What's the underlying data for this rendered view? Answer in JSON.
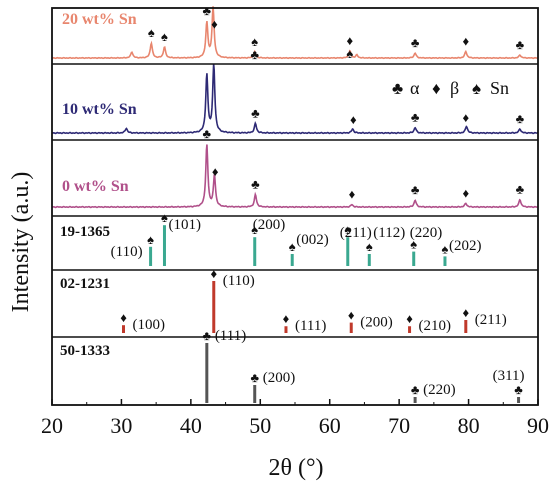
{
  "chart_data": {
    "type": "line",
    "xlabel": "2θ (°)",
    "ylabel": "Intensity (a.u.)",
    "xlim": [
      20,
      90
    ],
    "x_ticks": [
      20,
      30,
      40,
      50,
      60,
      70,
      80,
      90
    ],
    "legend": {
      "entries": [
        {
          "symbol": "♣",
          "label": "α"
        },
        {
          "symbol": "♦",
          "label": "β"
        },
        {
          "symbol": "♠",
          "label": "Sn"
        }
      ],
      "placement": "top-right of middle panel"
    },
    "series": [
      {
        "name": "20 wt% Sn",
        "color": "#e8866e",
        "peaks": [
          {
            "x": 31.5,
            "h": 0.12
          },
          {
            "x": 34.3,
            "h": 0.3
          },
          {
            "x": 36.2,
            "h": 0.22
          },
          {
            "x": 42.3,
            "h": 0.7
          },
          {
            "x": 43.2,
            "h": 1.0
          },
          {
            "x": 49.2,
            "h": 0.12
          },
          {
            "x": 62.9,
            "h": 0.14
          },
          {
            "x": 63.9,
            "h": 0.06
          },
          {
            "x": 72.3,
            "h": 0.1
          },
          {
            "x": 79.6,
            "h": 0.13
          },
          {
            "x": 87.4,
            "h": 0.06
          }
        ],
        "markers": [
          {
            "x": 34.3,
            "sym": "♠"
          },
          {
            "x": 36.2,
            "sym": "♠"
          },
          {
            "x": 42.3,
            "sym": "♣"
          },
          {
            "x": 43.4,
            "sym": "♦"
          },
          {
            "x": 49.2,
            "sym": "♠"
          },
          {
            "x": 49.2,
            "sym": "♣",
            "row": 2
          },
          {
            "x": 62.9,
            "sym": "♦"
          },
          {
            "x": 62.9,
            "sym": "♠",
            "row": 2
          },
          {
            "x": 72.3,
            "sym": "♣"
          },
          {
            "x": 79.6,
            "sym": "♦"
          },
          {
            "x": 87.4,
            "sym": "♣"
          }
        ]
      },
      {
        "name": "10 wt% Sn",
        "color": "#2e2a75",
        "peaks": [
          {
            "x": 30.7,
            "h": 0.07
          },
          {
            "x": 42.3,
            "h": 0.85
          },
          {
            "x": 43.3,
            "h": 1.0
          },
          {
            "x": 49.3,
            "h": 0.14
          },
          {
            "x": 63.3,
            "h": 0.06
          },
          {
            "x": 72.3,
            "h": 0.08
          },
          {
            "x": 79.7,
            "h": 0.1
          },
          {
            "x": 87.4,
            "h": 0.06
          }
        ],
        "markers": [
          {
            "x": 49.3,
            "sym": "♣"
          },
          {
            "x": 63.4,
            "sym": "♦"
          },
          {
            "x": 72.3,
            "sym": "♣"
          },
          {
            "x": 79.6,
            "sym": "♦"
          },
          {
            "x": 87.4,
            "sym": "♣"
          }
        ]
      },
      {
        "name": "0 wt% Sn",
        "color": "#b0508a",
        "peaks": [
          {
            "x": 42.3,
            "h": 1.0
          },
          {
            "x": 43.4,
            "h": 0.5
          },
          {
            "x": 49.3,
            "h": 0.2
          },
          {
            "x": 63.2,
            "h": 0.04
          },
          {
            "x": 72.3,
            "h": 0.11
          },
          {
            "x": 79.6,
            "h": 0.06
          },
          {
            "x": 87.4,
            "h": 0.12
          }
        ],
        "markers": [
          {
            "x": 42.3,
            "sym": "♣"
          },
          {
            "x": 43.5,
            "sym": "♦"
          },
          {
            "x": 49.3,
            "sym": "♣"
          },
          {
            "x": 63.2,
            "sym": "♦"
          },
          {
            "x": 72.3,
            "sym": "♣"
          },
          {
            "x": 79.6,
            "sym": "♦"
          },
          {
            "x": 87.4,
            "sym": "♣"
          }
        ]
      }
    ],
    "reference_panels": [
      {
        "name": "19-1365",
        "phase": "Sn",
        "color": "#3aa890",
        "lines": [
          {
            "x": 34.2,
            "h": 0.4,
            "label": "(110)",
            "sym": "♠"
          },
          {
            "x": 36.2,
            "h": 0.85,
            "label": "(101)",
            "sym": "♠"
          },
          {
            "x": 49.2,
            "h": 0.6,
            "label": "(200)",
            "sym": "♠"
          },
          {
            "x": 54.6,
            "h": 0.25,
            "label": "(002)",
            "sym": "♠"
          },
          {
            "x": 62.6,
            "h": 0.6,
            "label": "(211)",
            "sym": "♠"
          },
          {
            "x": 65.7,
            "h": 0.25,
            "label": "(112)",
            "sym": "♠"
          },
          {
            "x": 72.1,
            "h": 0.3,
            "label": "(220)",
            "sym": "♠"
          },
          {
            "x": 76.6,
            "h": 0.2,
            "label": "(202)",
            "sym": "♠"
          }
        ]
      },
      {
        "name": "02-1231",
        "phase": "β",
        "color": "#c0392b",
        "lines": [
          {
            "x": 30.3,
            "h": 0.15,
            "label": "(100)",
            "sym": "♦"
          },
          {
            "x": 43.3,
            "h": 1.0,
            "label": "(110)",
            "sym": "♦"
          },
          {
            "x": 53.7,
            "h": 0.13,
            "label": "(111)",
            "sym": "♦"
          },
          {
            "x": 63.1,
            "h": 0.2,
            "label": "(200)",
            "sym": "♦"
          },
          {
            "x": 71.5,
            "h": 0.13,
            "label": "(210)",
            "sym": "♦"
          },
          {
            "x": 79.6,
            "h": 0.25,
            "label": "(211)",
            "sym": "♦"
          }
        ]
      },
      {
        "name": "50-1333",
        "phase": "α",
        "color": "#555555",
        "lines": [
          {
            "x": 42.3,
            "h": 1.0,
            "label": "(111)",
            "sym": "♣"
          },
          {
            "x": 49.2,
            "h": 0.3,
            "label": "(200)",
            "sym": "♣"
          },
          {
            "x": 72.3,
            "h": 0.1,
            "label": "(220)",
            "sym": "♣"
          },
          {
            "x": 87.2,
            "h": 0.1,
            "label": "(311)",
            "sym": "♣"
          }
        ]
      }
    ]
  }
}
